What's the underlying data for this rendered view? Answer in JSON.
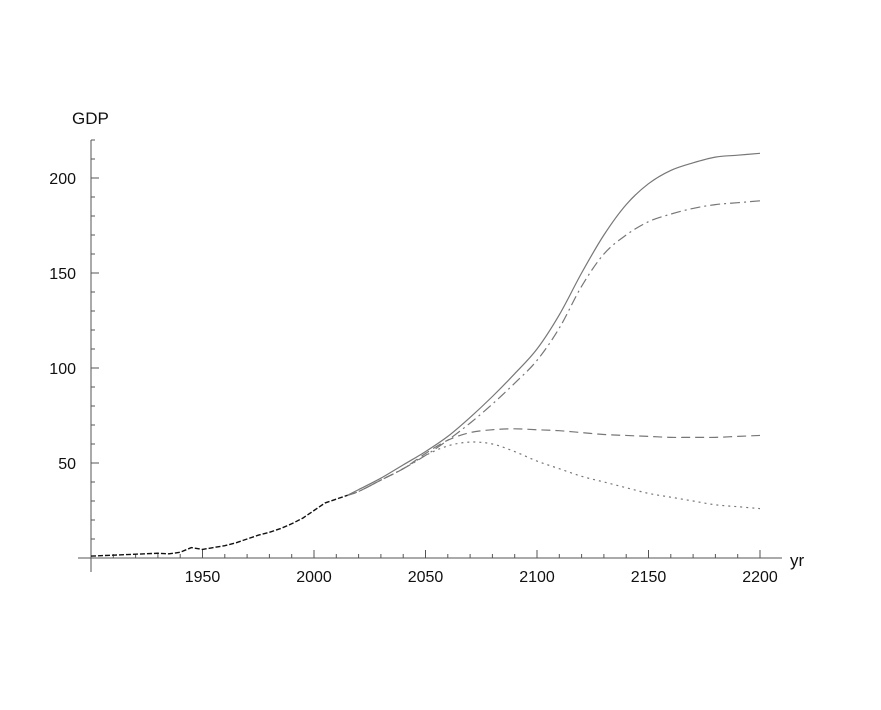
{
  "chart_data": {
    "type": "line",
    "title": "",
    "xlabel": "yr",
    "ylabel": "GDP",
    "xlim": [
      1900,
      2200
    ],
    "ylim": [
      0,
      220
    ],
    "x_ticks": [
      1950,
      2000,
      2050,
      2100,
      2150,
      2200
    ],
    "y_ticks": [
      50,
      100,
      150,
      200
    ],
    "grid": false,
    "legend": "none",
    "historical": {
      "style": "dashed-black",
      "x": [
        1900,
        1910,
        1920,
        1930,
        1935,
        1940,
        1945,
        1950,
        1955,
        1960,
        1965,
        1970,
        1975,
        1980,
        1985,
        1990,
        1995,
        2000,
        2005,
        2010,
        2015
      ],
      "y": [
        1.0,
        1.5,
        2.0,
        2.5,
        2.2,
        3.0,
        5.5,
        4.5,
        5.5,
        6.5,
        8.0,
        10.0,
        12.0,
        13.5,
        15.5,
        18.0,
        21.0,
        25.0,
        29.0,
        31.0,
        33.0
      ]
    },
    "series": [
      {
        "style": "solid",
        "x": [
          2015,
          2020,
          2030,
          2040,
          2050,
          2060,
          2070,
          2080,
          2090,
          2100,
          2110,
          2120,
          2130,
          2140,
          2150,
          2160,
          2170,
          2180,
          2190,
          2200
        ],
        "y": [
          33,
          36,
          42,
          49,
          56,
          64,
          74,
          85,
          97,
          110,
          128,
          150,
          170,
          186,
          197,
          204,
          208,
          211,
          212,
          213
        ]
      },
      {
        "style": "dash-dot",
        "x": [
          2015,
          2020,
          2030,
          2040,
          2050,
          2060,
          2070,
          2080,
          2090,
          2100,
          2110,
          2120,
          2130,
          2140,
          2150,
          2160,
          2170,
          2180,
          2190,
          2200
        ],
        "y": [
          33,
          35,
          41,
          47,
          54,
          62,
          71,
          81,
          92,
          104,
          121,
          143,
          160,
          170,
          177,
          181,
          184,
          186,
          187,
          188
        ]
      },
      {
        "style": "long-dash",
        "x": [
          2015,
          2020,
          2030,
          2040,
          2050,
          2060,
          2070,
          2080,
          2090,
          2100,
          2110,
          2120,
          2130,
          2140,
          2150,
          2160,
          2170,
          2180,
          2190,
          2200
        ],
        "y": [
          33,
          35,
          41,
          47,
          55,
          62,
          66,
          67.5,
          68,
          67.5,
          67,
          66,
          65,
          64.5,
          64,
          63.5,
          63.5,
          63.5,
          64,
          64.5
        ]
      },
      {
        "style": "dotted",
        "x": [
          2015,
          2020,
          2030,
          2040,
          2050,
          2060,
          2070,
          2080,
          2090,
          2100,
          2110,
          2120,
          2130,
          2140,
          2150,
          2160,
          2170,
          2180,
          2190,
          2200
        ],
        "y": [
          33,
          35,
          41,
          47,
          54,
          59,
          61,
          60,
          56,
          51,
          47,
          43,
          40,
          37,
          34,
          32,
          30,
          28,
          27,
          26
        ]
      }
    ]
  }
}
